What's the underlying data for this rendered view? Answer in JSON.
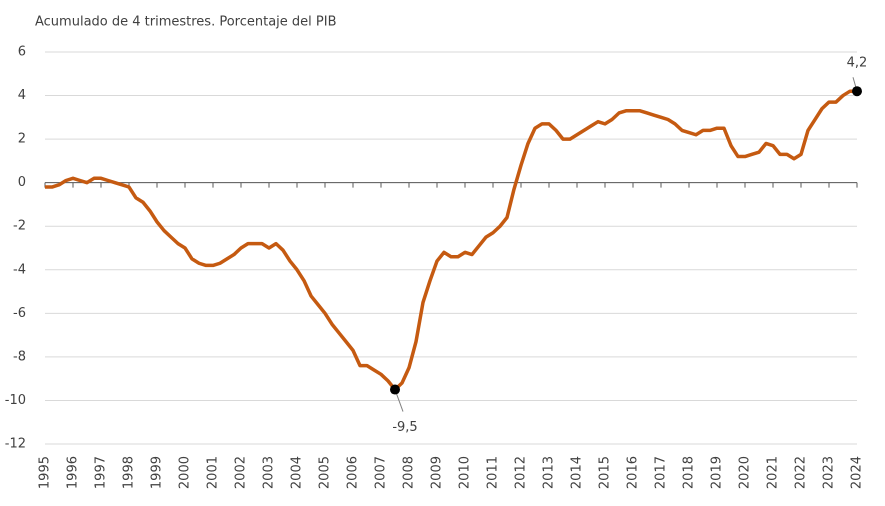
{
  "chart_data": {
    "type": "line",
    "title": "Acumulado de 4 trimestres. Porcentaje del PIB",
    "x": [
      1995,
      1995.25,
      1995.5,
      1995.75,
      1996,
      1996.25,
      1996.5,
      1996.75,
      1997,
      1997.25,
      1997.5,
      1997.75,
      1998,
      1998.25,
      1998.5,
      1998.75,
      1999,
      1999.25,
      1999.5,
      1999.75,
      2000,
      2000.25,
      2000.5,
      2000.75,
      2001,
      2001.25,
      2001.5,
      2001.75,
      2002,
      2002.25,
      2002.5,
      2002.75,
      2003,
      2003.25,
      2003.5,
      2003.75,
      2004,
      2004.25,
      2004.5,
      2004.75,
      2005,
      2005.25,
      2005.5,
      2005.75,
      2006,
      2006.25,
      2006.5,
      2006.75,
      2007,
      2007.25,
      2007.5,
      2007.75,
      2008,
      2008.25,
      2008.5,
      2008.75,
      2009,
      2009.25,
      2009.5,
      2009.75,
      2010,
      2010.25,
      2010.5,
      2010.75,
      2011,
      2011.25,
      2011.5,
      2011.75,
      2012,
      2012.25,
      2012.5,
      2012.75,
      2013,
      2013.25,
      2013.5,
      2013.75,
      2014,
      2014.25,
      2014.5,
      2014.75,
      2015,
      2015.25,
      2015.5,
      2015.75,
      2016,
      2016.25,
      2016.5,
      2016.75,
      2017,
      2017.25,
      2017.5,
      2017.75,
      2018,
      2018.25,
      2018.5,
      2018.75,
      2019,
      2019.25,
      2019.5,
      2019.75,
      2020,
      2020.25,
      2020.5,
      2020.75,
      2021,
      2021.25,
      2021.5,
      2021.75,
      2022,
      2022.25,
      2022.5,
      2022.75,
      2023,
      2023.25,
      2023.5,
      2023.75,
      2024
    ],
    "series": [
      {
        "color": "#c55a11",
        "values": [
          -0.2,
          -0.2,
          -0.1,
          0.1,
          0.2,
          0.1,
          0.0,
          0.2,
          0.2,
          0.1,
          0.0,
          -0.1,
          -0.2,
          -0.7,
          -0.9,
          -1.3,
          -1.8,
          -2.2,
          -2.5,
          -2.8,
          -3.0,
          -3.5,
          -3.7,
          -3.8,
          -3.8,
          -3.7,
          -3.5,
          -3.3,
          -3.0,
          -2.8,
          -2.8,
          -2.8,
          -3.0,
          -2.8,
          -3.1,
          -3.6,
          -4.0,
          -4.5,
          -5.2,
          -5.6,
          -6.0,
          -6.5,
          -6.9,
          -7.3,
          -7.7,
          -8.4,
          -8.4,
          -8.6,
          -8.8,
          -9.1,
          -9.5,
          -9.2,
          -8.5,
          -7.3,
          -5.5,
          -4.5,
          -3.6,
          -3.2,
          -3.4,
          -3.4,
          -3.2,
          -3.3,
          -2.9,
          -2.5,
          -2.3,
          -2.0,
          -1.6,
          -0.3,
          0.8,
          1.8,
          2.5,
          2.7,
          2.7,
          2.4,
          2.0,
          2.0,
          2.2,
          2.4,
          2.6,
          2.8,
          2.7,
          2.9,
          3.2,
          3.3,
          3.3,
          3.3,
          3.2,
          3.1,
          3.0,
          2.9,
          2.7,
          2.4,
          2.3,
          2.2,
          2.4,
          2.4,
          2.5,
          2.5,
          1.7,
          1.2,
          1.2,
          1.3,
          1.4,
          1.8,
          1.7,
          1.3,
          1.3,
          1.1,
          1.3,
          2.4,
          2.9,
          3.4,
          3.7,
          3.7,
          4.0,
          4.2,
          4.2
        ]
      }
    ],
    "annotations": [
      {
        "x": 2007.5,
        "y": -9.5,
        "label": "-9,5"
      },
      {
        "x": 2024,
        "y": 4.2,
        "label": "4,2"
      }
    ],
    "xlim": [
      1995,
      2024
    ],
    "xticks": [
      1995,
      1996,
      1997,
      1998,
      1999,
      2000,
      2001,
      2002,
      2003,
      2004,
      2005,
      2006,
      2007,
      2008,
      2009,
      2010,
      2011,
      2012,
      2013,
      2014,
      2015,
      2016,
      2017,
      2018,
      2019,
      2020,
      2021,
      2022,
      2023,
      2024
    ],
    "ylim": [
      -12,
      6
    ],
    "yticks": [
      -12,
      -10,
      -8,
      -6,
      -4,
      -2,
      0,
      2,
      4,
      6
    ],
    "grid": true
  }
}
